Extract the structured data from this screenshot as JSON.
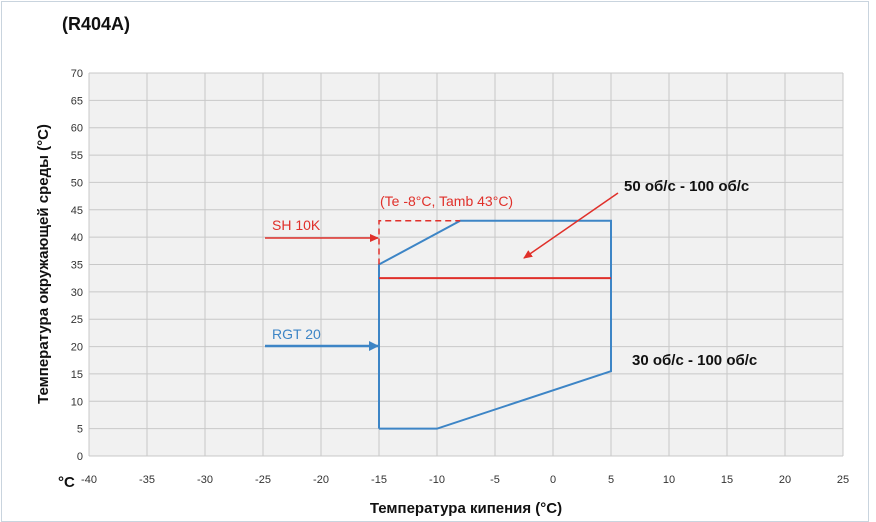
{
  "chart_data": {
    "type": "line",
    "title": "(R404A)",
    "xlabel": "Температура кипения (°C)",
    "ylabel": "Температура окружающей среды (°C)",
    "unit_label": "°C",
    "xlim": [
      -40,
      25
    ],
    "ylim": [
      0,
      70
    ],
    "xticks": [
      -40,
      -35,
      -30,
      -25,
      -20,
      -15,
      -10,
      -5,
      0,
      5,
      10,
      15,
      20,
      25
    ],
    "yticks": [
      0,
      5,
      10,
      15,
      20,
      25,
      30,
      35,
      40,
      45,
      50,
      55,
      60,
      65,
      70
    ],
    "grid": true,
    "series": [
      {
        "color": "#3d85c6",
        "x": [
          -15,
          -15,
          -8,
          5,
          5,
          -10,
          -15
        ],
        "y": [
          5,
          35,
          43,
          43,
          15.5,
          5,
          5
        ]
      },
      {
        "color": "#e0302a",
        "style": "solid",
        "x": [
          -15,
          5
        ],
        "y": [
          32.5,
          32.5
        ]
      },
      {
        "color": "#e0302a",
        "style": "dashed",
        "x": [
          -15,
          -15,
          -8
        ],
        "y": [
          35,
          43,
          43
        ]
      }
    ],
    "annotations": {
      "te_tamb": {
        "text": "(Te -8°C, Tamb 43°C)",
        "color": "#e0302a"
      },
      "sh": {
        "text": "SH 10K",
        "color": "#e0302a"
      },
      "rgt": {
        "text": "RGT 20",
        "color": "#3d85c6"
      },
      "speed_high": {
        "text": "50 об/с - 100 об/с"
      },
      "speed_low": {
        "text": "30 об/с - 100 об/с"
      }
    }
  }
}
